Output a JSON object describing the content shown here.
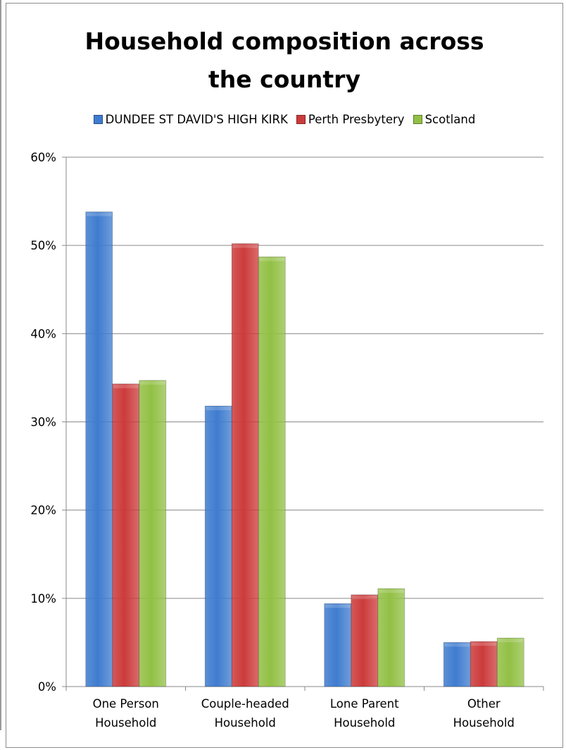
{
  "chart_data": {
    "type": "bar",
    "title": "Household composition across the country",
    "title_lines": [
      "Household composition across",
      "the country"
    ],
    "categories": [
      "One Person Household",
      "Couple-headed Household",
      "Lone Parent Household",
      "Other Household"
    ],
    "category_lines": [
      [
        "One Person",
        "Household"
      ],
      [
        "Couple-headed",
        "Household"
      ],
      [
        "Lone Parent",
        "Household"
      ],
      [
        "Other",
        "Household"
      ]
    ],
    "series": [
      {
        "name": "DUNDEE ST DAVID'S HIGH KIRK",
        "color": "#3f7ccf",
        "values": [
          53.8,
          31.8,
          9.4,
          5.0
        ]
      },
      {
        "name": "Perth Presbytery",
        "color": "#cc3b3b",
        "values": [
          34.3,
          50.2,
          10.4,
          5.1
        ]
      },
      {
        "name": "Scotland",
        "color": "#92c045",
        "values": [
          34.7,
          48.7,
          11.1,
          5.5
        ]
      }
    ],
    "ylim": [
      0,
      60
    ],
    "yticks": [
      "0%",
      "10%",
      "20%",
      "30%",
      "40%",
      "50%",
      "60%"
    ],
    "grid": true,
    "legend_position": "top"
  }
}
